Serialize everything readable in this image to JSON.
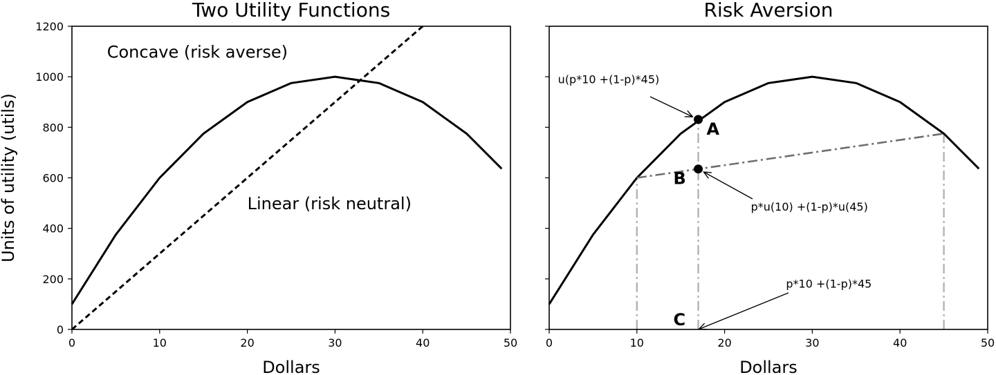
{
  "chart_data": [
    {
      "type": "line",
      "title": "Two Utility Functions",
      "xlabel": "Dollars",
      "ylabel": "Units of utility (utils)",
      "xlim": [
        0,
        50
      ],
      "ylim": [
        0,
        1200
      ],
      "xticks": [
        0,
        10,
        20,
        30,
        40,
        50
      ],
      "yticks": [
        0,
        200,
        400,
        600,
        800,
        1000,
        1200
      ],
      "grid": false,
      "series": [
        {
          "style": "solid",
          "x": [
            0,
            5,
            10,
            15,
            20,
            25,
            30,
            35,
            40,
            45,
            49
          ],
          "y": [
            100,
            375,
            600,
            775,
            900,
            975,
            1000,
            975,
            900,
            775,
            636
          ]
        },
        {
          "style": "dashed",
          "x": [
            0,
            10,
            20,
            30,
            40
          ],
          "y": [
            0,
            300,
            600,
            900,
            1200
          ]
        }
      ],
      "annotations": [
        {
          "text": "Concave (risk averse)",
          "x": 4,
          "y": 1075
        },
        {
          "text": "Linear (risk neutral)",
          "x": 20,
          "y": 475
        }
      ]
    },
    {
      "type": "line",
      "title": "Risk Aversion",
      "xlabel": "Dollars",
      "xlim": [
        0,
        50
      ],
      "ylim": [
        0,
        1200
      ],
      "xticks": [
        0,
        10,
        20,
        30,
        40,
        50
      ],
      "yticks": [
        0,
        200,
        400,
        600,
        800,
        1000,
        1200
      ],
      "show_ytick_labels": false,
      "grid": false,
      "series": [
        {
          "style": "solid",
          "x": [
            0,
            5,
            10,
            15,
            20,
            25,
            30,
            35,
            40,
            45,
            49
          ],
          "y": [
            100,
            375,
            600,
            775,
            900,
            975,
            1000,
            975,
            900,
            775,
            636
          ]
        },
        {
          "style": "dashdot",
          "x": [
            10,
            45
          ],
          "y": [
            600,
            775
          ]
        }
      ],
      "vertical_lines": [
        {
          "x": 10,
          "y_top": 600
        },
        {
          "x": 17,
          "y_top": 831
        },
        {
          "x": 45,
          "y_top": 775
        }
      ],
      "points": [
        {
          "label": "A",
          "x": 17,
          "y": 831
        },
        {
          "label": "B",
          "x": 17,
          "y": 635
        },
        {
          "label": "C",
          "x": 17,
          "y": 0
        }
      ],
      "annotations": [
        {
          "text": "u(p*10 +(1-p)*45)",
          "x": 1,
          "y": 975,
          "target_x": 17,
          "target_y": 831
        },
        {
          "text": "p*u(10) +(1-p)*u(45)",
          "x": 23,
          "y": 470,
          "target_x": 17,
          "target_y": 635
        },
        {
          "text": "p*10 +(1-p)*45",
          "x": 27,
          "y": 165,
          "target_x": 17,
          "target_y": 0
        }
      ]
    }
  ]
}
